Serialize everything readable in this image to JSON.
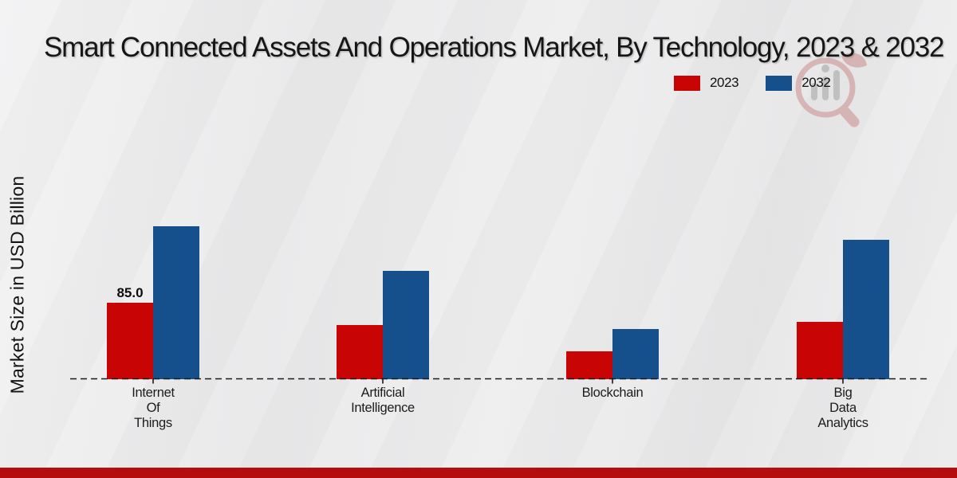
{
  "title": "Smart Connected Assets And Operations Market, By Technology, 2023 & 2032",
  "y_axis_label": "Market Size in USD Billion",
  "legend": {
    "items": [
      {
        "label": "2023",
        "color": "#c80404"
      },
      {
        "label": "2032",
        "color": "#15508c"
      }
    ]
  },
  "watermark_icon": "bar-chart-circle-logo",
  "footer": {
    "color": "#b50d0d"
  },
  "colors": {
    "series_2023": "#c80404",
    "series_2032": "#15508c",
    "baseline": "#1a1a1a",
    "background": "#ebebec"
  },
  "chart_data": {
    "type": "bar",
    "title": "Smart Connected Assets And Operations Market, By Technology, 2023 & 2032",
    "ylabel": "Market Size in USD Billion",
    "xlabel": "",
    "categories": [
      "Internet Of Things",
      "Artificial Intelligence",
      "Blockchain",
      "Big Data Analytics"
    ],
    "categories_multiline": [
      [
        "Internet",
        "Of",
        "Things"
      ],
      [
        "Artificial",
        "Intelligence"
      ],
      [
        "Blockchain"
      ],
      [
        "Big",
        "Data",
        "Analytics"
      ]
    ],
    "series": [
      {
        "name": "2023",
        "color": "#c80404",
        "values": [
          85.0,
          60.0,
          31.0,
          64.0
        ]
      },
      {
        "name": "2032",
        "color": "#15508c",
        "values": [
          170.0,
          120.0,
          56.0,
          155.0
        ]
      }
    ],
    "data_labels": [
      {
        "series": "2023",
        "category_index": 0,
        "text": "85.0"
      }
    ],
    "ylim": [
      0,
      190
    ],
    "y_axis_ticks_visible": false,
    "grid": false,
    "baseline_style": "dashed",
    "legend_position": "top-right"
  }
}
